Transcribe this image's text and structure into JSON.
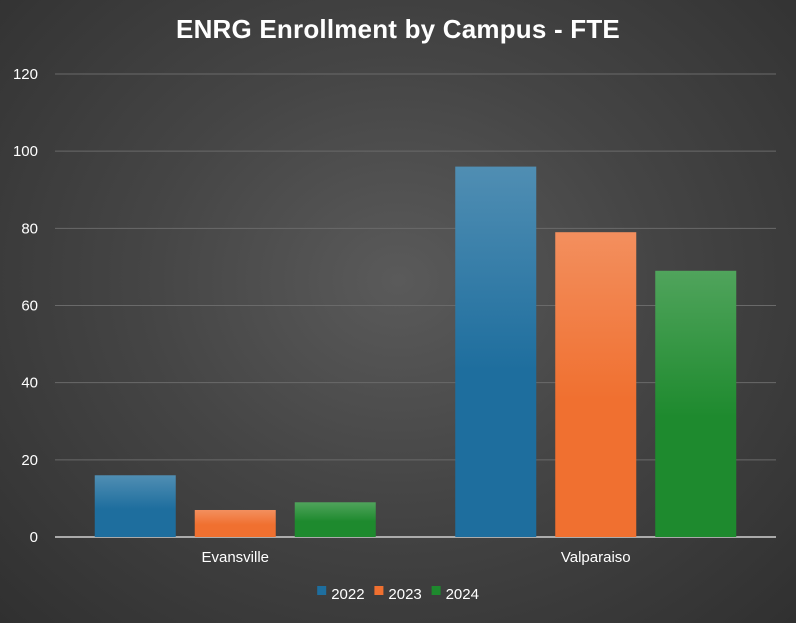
{
  "chart_data": {
    "type": "bar",
    "title": "ENRG Enrollment by Campus - FTE",
    "categories": [
      "Evansville",
      "Valparaiso"
    ],
    "series": [
      {
        "name": "2022",
        "values": [
          16,
          96
        ],
        "color": "#1e6e9e"
      },
      {
        "name": "2023",
        "values": [
          7,
          79
        ],
        "color": "#f07030"
      },
      {
        "name": "2024",
        "values": [
          9,
          69
        ],
        "color": "#1e8a2e"
      }
    ],
    "ylim": [
      0,
      120
    ],
    "yticks": [
      0,
      20,
      40,
      60,
      80,
      100,
      120
    ],
    "grid": true,
    "legend": "bottom",
    "xlabel": "",
    "ylabel": ""
  }
}
